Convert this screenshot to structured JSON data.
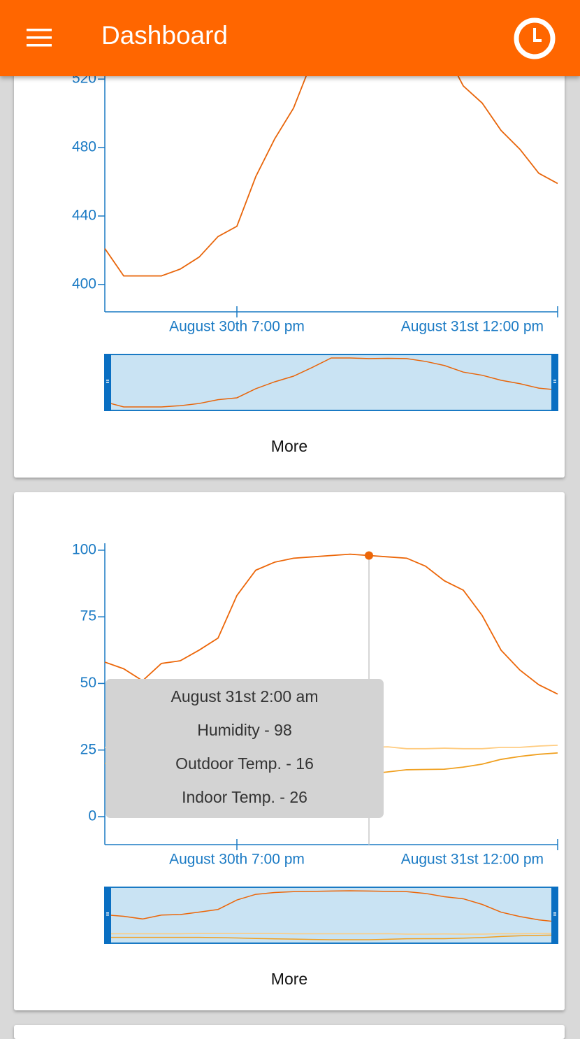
{
  "header": {
    "title": "Dashboard"
  },
  "chart_data": [
    {
      "type": "line",
      "categories": [
        null,
        null,
        null,
        null,
        null,
        null,
        null,
        "August 30th 7:00 pm",
        null,
        null,
        null,
        null,
        null,
        null,
        null,
        null,
        null,
        null,
        null,
        null,
        null,
        null,
        null,
        null,
        "August 31st 12:00 pm"
      ],
      "values": [
        421,
        405,
        405,
        405,
        409,
        416,
        428,
        434,
        463,
        485,
        503,
        531,
        561,
        561,
        559,
        560,
        559,
        550,
        537,
        516,
        506,
        490,
        479,
        465,
        459
      ],
      "color": "#e8650a",
      "ylim": [
        384,
        565
      ],
      "yticks": [
        400,
        440,
        480,
        520
      ]
    },
    {
      "type": "line",
      "categories": [
        null,
        null,
        null,
        null,
        null,
        null,
        null,
        "August 30th 7:00 pm",
        null,
        null,
        null,
        null,
        null,
        null,
        null,
        null,
        null,
        null,
        null,
        null,
        null,
        null,
        null,
        null,
        "August 31st 12:00 pm"
      ],
      "series": [
        {
          "name": "Humidity",
          "color": "#ec6608",
          "values": [
            58,
            55.5,
            51,
            57.5,
            58.5,
            62.5,
            67,
            83,
            92.5,
            95.5,
            97,
            97.5,
            98,
            98.5,
            98,
            97.5,
            97,
            94,
            88.5,
            85,
            75.5,
            62.5,
            55,
            49.5,
            46
          ]
        },
        {
          "name": "Outdoor Temp.",
          "color": "#f0a020",
          "values": [
            20,
            20,
            20,
            20,
            20,
            20,
            19.5,
            19,
            18,
            17.5,
            17,
            16.5,
            16,
            16,
            16,
            16.8,
            17.6,
            17.7,
            17.8,
            18.6,
            19.7,
            21.5,
            22.6,
            23.4,
            23.9
          ]
        },
        {
          "name": "Indoor Temp.",
          "color": "#ffcc80",
          "values": [
            26,
            26,
            26,
            26,
            26,
            26.5,
            26.5,
            26.5,
            26.5,
            26.5,
            26,
            26,
            26,
            26,
            26,
            26.2,
            25.5,
            25.5,
            25.7,
            25.5,
            25.5,
            26,
            26,
            26.5,
            26.8
          ]
        }
      ],
      "ylim": [
        -10.5,
        102.6
      ],
      "yticks": [
        0,
        25,
        50,
        75,
        100
      ],
      "tooltip": {
        "index": 14,
        "title": "August 31st 2:00 am",
        "lines": [
          "Humidity - 98",
          "Outdoor Temp. - 16",
          "Indoor Temp. - 26"
        ]
      }
    }
  ],
  "cards": [
    {
      "button": "More"
    },
    {
      "button": "More"
    }
  ]
}
